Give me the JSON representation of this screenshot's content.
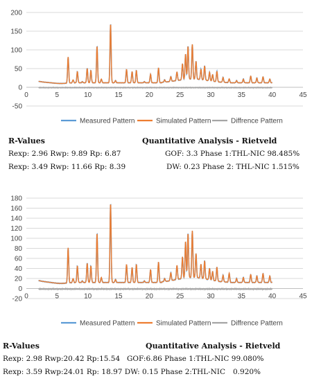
{
  "charts": [
    {
      "id": "chart1",
      "type": "line",
      "xlim": [
        0,
        45
      ],
      "ylim": [
        -50,
        200
      ],
      "xticks": [
        "0",
        "5",
        "10",
        "15",
        "20",
        "25",
        "30",
        "35",
        "40",
        "45"
      ],
      "yticks": [
        "-50",
        "0",
        "50",
        "100",
        "150",
        "200"
      ],
      "legend_position": "bottom",
      "grid": true,
      "colors": {
        "measured": "#5B9BD5",
        "simulated": "#ED7D31",
        "difference": "#A5A5A5"
      },
      "legend": [
        "Measured Pattern",
        "Simulated Pattern",
        "Diffrence Pattern"
      ],
      "peaks": [
        [
          6.8,
          82
        ],
        [
          7.6,
          20
        ],
        [
          8.3,
          42
        ],
        [
          9.1,
          15
        ],
        [
          9.9,
          50
        ],
        [
          10.5,
          45
        ],
        [
          11.5,
          110
        ],
        [
          12.2,
          22
        ],
        [
          13.7,
          170
        ],
        [
          14.5,
          18
        ],
        [
          16.3,
          48
        ],
        [
          17.2,
          42
        ],
        [
          17.9,
          45
        ],
        [
          19.2,
          15
        ],
        [
          20.2,
          35
        ],
        [
          21.5,
          52
        ],
        [
          22.5,
          18
        ],
        [
          23.5,
          25
        ],
        [
          24.5,
          35
        ],
        [
          25.4,
          55
        ],
        [
          25.9,
          80
        ],
        [
          26.3,
          100
        ],
        [
          27.0,
          105
        ],
        [
          27.6,
          60
        ],
        [
          28.4,
          40
        ],
        [
          29.0,
          50
        ],
        [
          29.8,
          35
        ],
        [
          30.3,
          30
        ],
        [
          31.0,
          40
        ],
        [
          32.0,
          25
        ],
        [
          33.0,
          22
        ],
        [
          34.2,
          18
        ],
        [
          35.3,
          22
        ],
        [
          36.5,
          30
        ],
        [
          37.5,
          25
        ],
        [
          38.5,
          28
        ],
        [
          39.6,
          22
        ]
      ]
    },
    {
      "id": "chart2",
      "type": "line",
      "xlim": [
        0,
        45
      ],
      "ylim": [
        -20,
        180
      ],
      "xticks": [
        "0",
        "5",
        "10",
        "15",
        "20",
        "25",
        "30",
        "35",
        "40",
        "45"
      ],
      "yticks": [
        "-20",
        "0",
        "20",
        "40",
        "60",
        "80",
        "100",
        "120",
        "140",
        "160",
        "180"
      ],
      "legend_position": "bottom",
      "grid": true,
      "colors": {
        "measured": "#5B9BD5",
        "simulated": "#ED7D31",
        "difference": "#A5A5A5"
      },
      "legend": [
        "Measured Pattern",
        "Simulated Pattern",
        "Diffrence Pattern"
      ],
      "peaks": [
        [
          6.8,
          82
        ],
        [
          7.6,
          20
        ],
        [
          8.3,
          45
        ],
        [
          9.1,
          15
        ],
        [
          9.9,
          50
        ],
        [
          10.5,
          45
        ],
        [
          11.5,
          110
        ],
        [
          12.2,
          22
        ],
        [
          13.7,
          170
        ],
        [
          14.5,
          18
        ],
        [
          16.3,
          48
        ],
        [
          17.2,
          42
        ],
        [
          17.9,
          48
        ],
        [
          19.2,
          15
        ],
        [
          20.2,
          38
        ],
        [
          21.5,
          53
        ],
        [
          22.5,
          18
        ],
        [
          23.5,
          28
        ],
        [
          24.5,
          40
        ],
        [
          25.4,
          55
        ],
        [
          25.9,
          85
        ],
        [
          26.3,
          100
        ],
        [
          27.0,
          105
        ],
        [
          27.6,
          60
        ],
        [
          28.4,
          40
        ],
        [
          29.0,
          48
        ],
        [
          29.8,
          35
        ],
        [
          30.3,
          30
        ],
        [
          31.0,
          40
        ],
        [
          32.0,
          25
        ],
        [
          33.0,
          30
        ],
        [
          34.2,
          20
        ],
        [
          35.3,
          22
        ],
        [
          36.5,
          28
        ],
        [
          37.5,
          25
        ],
        [
          38.5,
          30
        ],
        [
          39.6,
          25
        ]
      ]
    }
  ],
  "results": [
    {
      "heading_left": "R-Values",
      "heading_right": "Quantitative Analysis - Rietveld",
      "line1_left": "Rexp: 2.96 Rwp: 9.89   Rp: 6.87",
      "line1_right": "GOF: 3.3 Phase 1:THL-NIC 98.485%",
      "line2_left": "Rexp: 3.49 Rwp: 11.66 Rp: 8.39",
      "line2_right": "DW: 0.23 Phase 2: THL-NIC 1.515%"
    },
    {
      "heading_left": "R-Values",
      "heading_right": "Quantitative Analysis - Rietveld",
      "line1_left": "Rexp: 2.98 Rwp:20.42 Rp:15.54",
      "line1_right": "GOF:6.86 Phase 1:THL-NIC 99.080%",
      "line2_left": "Rexp: 3.59 Rwp:24.01 Rp: 18.97 DW: 0.15 Phase 2:THL-NIC",
      "line2_right": "0.920%"
    }
  ]
}
